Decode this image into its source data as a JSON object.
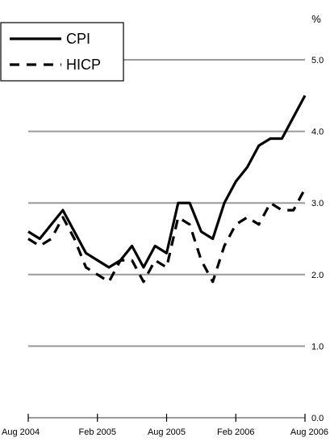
{
  "chart_data": {
    "type": "line",
    "unit": "%",
    "x": [
      "Aug 2004",
      "Sep 2004",
      "Oct 2004",
      "Nov 2004",
      "Dec 2004",
      "Jan 2005",
      "Feb 2005",
      "Mar 2005",
      "Apr 2005",
      "May 2005",
      "Jun 2005",
      "Jul 2005",
      "Aug 2005",
      "Sep 2005",
      "Oct 2005",
      "Nov 2005",
      "Dec 2005",
      "Jan 2006",
      "Feb 2006",
      "Mar 2006",
      "Apr 2006",
      "May 2006",
      "Jun 2006",
      "Jul 2006",
      "Aug 2006"
    ],
    "x_ticks": [
      "Aug 2004",
      "Feb 2005",
      "Aug 2005",
      "Feb 2006",
      "Aug 2006"
    ],
    "ylim": [
      0,
      5
    ],
    "y_ticks": [
      "0.0",
      "1.0",
      "2.0",
      "3.0",
      "4.0",
      "5.0"
    ],
    "grid": true,
    "legend_position": "top-left",
    "series": [
      {
        "name": "CPI",
        "style": "solid",
        "color": "#000000",
        "values": [
          2.6,
          2.5,
          2.7,
          2.9,
          2.6,
          2.3,
          2.2,
          2.1,
          2.2,
          2.4,
          2.1,
          2.4,
          2.3,
          3.0,
          3.0,
          2.6,
          2.5,
          3.0,
          3.3,
          3.5,
          3.8,
          3.9,
          3.9,
          4.2,
          4.5
        ]
      },
      {
        "name": "HICP",
        "style": "dashed",
        "color": "#000000",
        "values": [
          2.5,
          2.4,
          2.5,
          2.8,
          2.5,
          2.1,
          2.0,
          1.9,
          2.2,
          2.2,
          1.9,
          2.2,
          2.1,
          2.8,
          2.7,
          2.2,
          1.9,
          2.4,
          2.7,
          2.8,
          2.7,
          3.0,
          2.9,
          2.9,
          3.2
        ]
      }
    ]
  }
}
